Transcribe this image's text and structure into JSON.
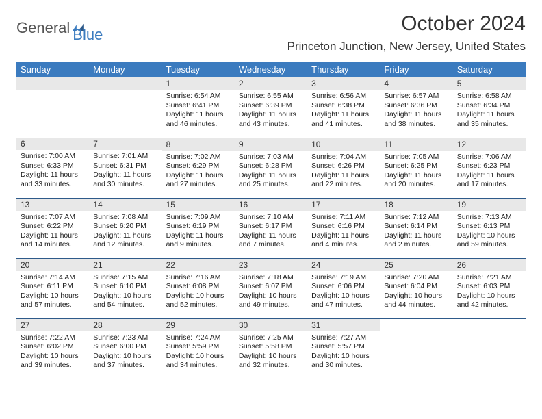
{
  "logo": {
    "part1": "General",
    "part2": "Blue"
  },
  "title": "October 2024",
  "location": "Princeton Junction, New Jersey, United States",
  "colors": {
    "header_bg": "#3b7bbf",
    "header_text": "#ffffff",
    "daynum_bg": "#e8e8e8",
    "row_border": "#2e5a8a",
    "logo_gray": "#555555",
    "logo_blue": "#3b7bbf",
    "body_text": "#222222"
  },
  "day_headers": [
    "Sunday",
    "Monday",
    "Tuesday",
    "Wednesday",
    "Thursday",
    "Friday",
    "Saturday"
  ],
  "weeks": [
    [
      null,
      null,
      {
        "n": "1",
        "sr": "6:54 AM",
        "ss": "6:41 PM",
        "dl": "11 hours and 46 minutes."
      },
      {
        "n": "2",
        "sr": "6:55 AM",
        "ss": "6:39 PM",
        "dl": "11 hours and 43 minutes."
      },
      {
        "n": "3",
        "sr": "6:56 AM",
        "ss": "6:38 PM",
        "dl": "11 hours and 41 minutes."
      },
      {
        "n": "4",
        "sr": "6:57 AM",
        "ss": "6:36 PM",
        "dl": "11 hours and 38 minutes."
      },
      {
        "n": "5",
        "sr": "6:58 AM",
        "ss": "6:34 PM",
        "dl": "11 hours and 35 minutes."
      }
    ],
    [
      {
        "n": "6",
        "sr": "7:00 AM",
        "ss": "6:33 PM",
        "dl": "11 hours and 33 minutes."
      },
      {
        "n": "7",
        "sr": "7:01 AM",
        "ss": "6:31 PM",
        "dl": "11 hours and 30 minutes."
      },
      {
        "n": "8",
        "sr": "7:02 AM",
        "ss": "6:29 PM",
        "dl": "11 hours and 27 minutes."
      },
      {
        "n": "9",
        "sr": "7:03 AM",
        "ss": "6:28 PM",
        "dl": "11 hours and 25 minutes."
      },
      {
        "n": "10",
        "sr": "7:04 AM",
        "ss": "6:26 PM",
        "dl": "11 hours and 22 minutes."
      },
      {
        "n": "11",
        "sr": "7:05 AM",
        "ss": "6:25 PM",
        "dl": "11 hours and 20 minutes."
      },
      {
        "n": "12",
        "sr": "7:06 AM",
        "ss": "6:23 PM",
        "dl": "11 hours and 17 minutes."
      }
    ],
    [
      {
        "n": "13",
        "sr": "7:07 AM",
        "ss": "6:22 PM",
        "dl": "11 hours and 14 minutes."
      },
      {
        "n": "14",
        "sr": "7:08 AM",
        "ss": "6:20 PM",
        "dl": "11 hours and 12 minutes."
      },
      {
        "n": "15",
        "sr": "7:09 AM",
        "ss": "6:19 PM",
        "dl": "11 hours and 9 minutes."
      },
      {
        "n": "16",
        "sr": "7:10 AM",
        "ss": "6:17 PM",
        "dl": "11 hours and 7 minutes."
      },
      {
        "n": "17",
        "sr": "7:11 AM",
        "ss": "6:16 PM",
        "dl": "11 hours and 4 minutes."
      },
      {
        "n": "18",
        "sr": "7:12 AM",
        "ss": "6:14 PM",
        "dl": "11 hours and 2 minutes."
      },
      {
        "n": "19",
        "sr": "7:13 AM",
        "ss": "6:13 PM",
        "dl": "10 hours and 59 minutes."
      }
    ],
    [
      {
        "n": "20",
        "sr": "7:14 AM",
        "ss": "6:11 PM",
        "dl": "10 hours and 57 minutes."
      },
      {
        "n": "21",
        "sr": "7:15 AM",
        "ss": "6:10 PM",
        "dl": "10 hours and 54 minutes."
      },
      {
        "n": "22",
        "sr": "7:16 AM",
        "ss": "6:08 PM",
        "dl": "10 hours and 52 minutes."
      },
      {
        "n": "23",
        "sr": "7:18 AM",
        "ss": "6:07 PM",
        "dl": "10 hours and 49 minutes."
      },
      {
        "n": "24",
        "sr": "7:19 AM",
        "ss": "6:06 PM",
        "dl": "10 hours and 47 minutes."
      },
      {
        "n": "25",
        "sr": "7:20 AM",
        "ss": "6:04 PM",
        "dl": "10 hours and 44 minutes."
      },
      {
        "n": "26",
        "sr": "7:21 AM",
        "ss": "6:03 PM",
        "dl": "10 hours and 42 minutes."
      }
    ],
    [
      {
        "n": "27",
        "sr": "7:22 AM",
        "ss": "6:02 PM",
        "dl": "10 hours and 39 minutes."
      },
      {
        "n": "28",
        "sr": "7:23 AM",
        "ss": "6:00 PM",
        "dl": "10 hours and 37 minutes."
      },
      {
        "n": "29",
        "sr": "7:24 AM",
        "ss": "5:59 PM",
        "dl": "10 hours and 34 minutes."
      },
      {
        "n": "30",
        "sr": "7:25 AM",
        "ss": "5:58 PM",
        "dl": "10 hours and 32 minutes."
      },
      {
        "n": "31",
        "sr": "7:27 AM",
        "ss": "5:57 PM",
        "dl": "10 hours and 30 minutes."
      },
      null,
      null
    ]
  ],
  "labels": {
    "sunrise": "Sunrise:",
    "sunset": "Sunset:",
    "daylight": "Daylight:"
  }
}
